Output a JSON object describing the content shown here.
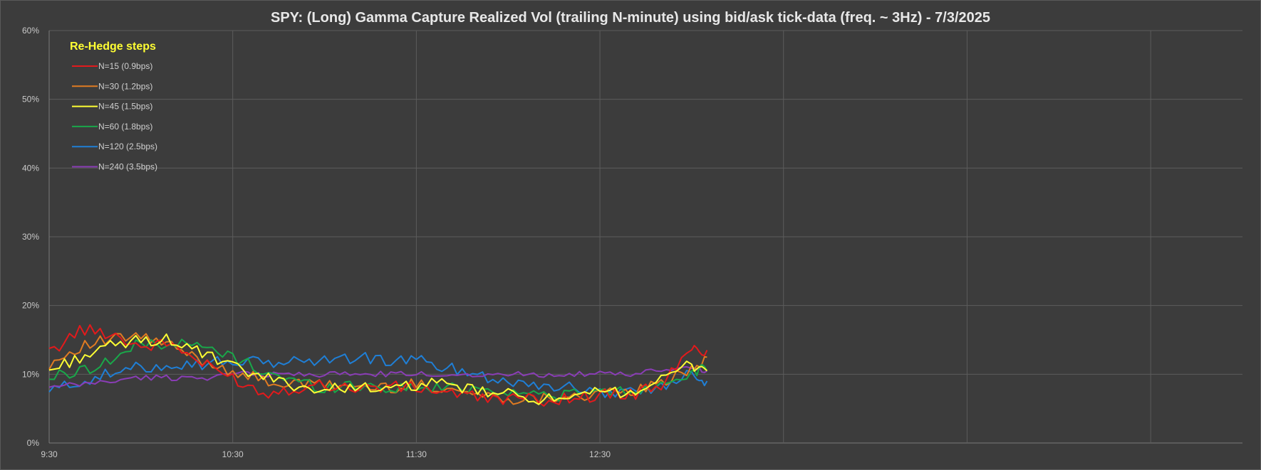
{
  "chart_data": {
    "type": "line",
    "title": "SPY: (Long) Gamma Capture Realized Vol (trailing N-minute) using bid/ask tick-data (freq. ~ 3Hz) - 7/3/2025",
    "xlabel": "",
    "ylabel": "",
    "x_axis": {
      "type": "time",
      "range": [
        "9:30",
        "16:00"
      ],
      "tick_labels": [
        "9:30",
        "10:30",
        "11:30",
        "12:30"
      ],
      "gridlines_every_minutes": 60
    },
    "y_axis": {
      "range": [
        0,
        60
      ],
      "unit": "%",
      "tick_labels": [
        "0%",
        "10%",
        "20%",
        "30%",
        "40%",
        "50%",
        "60%"
      ]
    },
    "grid": true,
    "legend": {
      "title": "Re-Hedge steps",
      "placement": "top-left"
    },
    "x": [
      "9:30",
      "9:40",
      "9:50",
      "10:00",
      "10:10",
      "10:20",
      "10:30",
      "10:40",
      "10:50",
      "11:00",
      "11:10",
      "11:20",
      "11:30",
      "11:40",
      "11:50",
      "12:00",
      "12:10",
      "12:20",
      "12:30",
      "12:40",
      "12:50",
      "13:00",
      "13:05"
    ],
    "series": [
      {
        "name": "N=15 (0.9bps)",
        "color": "#e31a1c",
        "values": [
          13.0,
          16.5,
          16.0,
          14.0,
          14.5,
          11.5,
          9.5,
          7.2,
          8.0,
          8.5,
          8.0,
          8.2,
          8.0,
          7.5,
          6.5,
          6.5,
          6.2,
          6.5,
          7.0,
          7.0,
          8.5,
          13.5,
          13.5
        ]
      },
      {
        "name": "N=30 (1.2bps)",
        "color": "#e07b22",
        "values": [
          11.5,
          14.0,
          15.0,
          15.5,
          14.0,
          12.0,
          10.5,
          9.0,
          8.5,
          8.5,
          8.2,
          8.0,
          8.5,
          8.0,
          7.0,
          6.5,
          6.5,
          7.0,
          7.0,
          7.5,
          8.5,
          11.0,
          12.5
        ]
      },
      {
        "name": "N=45 (1.5bps)",
        "color": "#ffff33",
        "values": [
          10.5,
          12.5,
          14.0,
          15.0,
          15.0,
          13.0,
          11.0,
          9.5,
          8.5,
          7.5,
          8.5,
          7.5,
          8.5,
          8.5,
          7.5,
          7.0,
          6.5,
          6.0,
          7.5,
          7.5,
          9.0,
          11.5,
          10.5
        ]
      },
      {
        "name": "N=60 (1.8bps)",
        "color": "#19a84a",
        "values": [
          9.5,
          10.5,
          12.0,
          14.5,
          14.5,
          14.0,
          12.5,
          10.5,
          9.0,
          8.0,
          8.5,
          8.0,
          8.0,
          8.0,
          8.0,
          7.5,
          7.0,
          7.0,
          7.5,
          7.5,
          8.5,
          10.5,
          10.5
        ]
      },
      {
        "name": "N=120 (2.5bps)",
        "color": "#1f7fd6",
        "values": [
          7.5,
          9.0,
          10.0,
          11.0,
          11.5,
          11.5,
          12.0,
          11.5,
          12.0,
          12.0,
          12.5,
          12.0,
          12.0,
          11.0,
          10.0,
          9.0,
          8.5,
          8.0,
          7.5,
          7.5,
          8.0,
          10.5,
          9.0
        ]
      },
      {
        "name": "N=240 (3.5bps)",
        "color": "#8a3db6",
        "values": [
          8.0,
          8.5,
          9.0,
          9.5,
          9.5,
          9.5,
          10.0,
          10.0,
          10.0,
          10.0,
          10.0,
          10.0,
          10.0,
          10.0,
          10.0,
          10.0,
          10.0,
          10.0,
          10.0,
          10.0,
          10.5,
          11.0,
          10.5
        ]
      }
    ]
  }
}
